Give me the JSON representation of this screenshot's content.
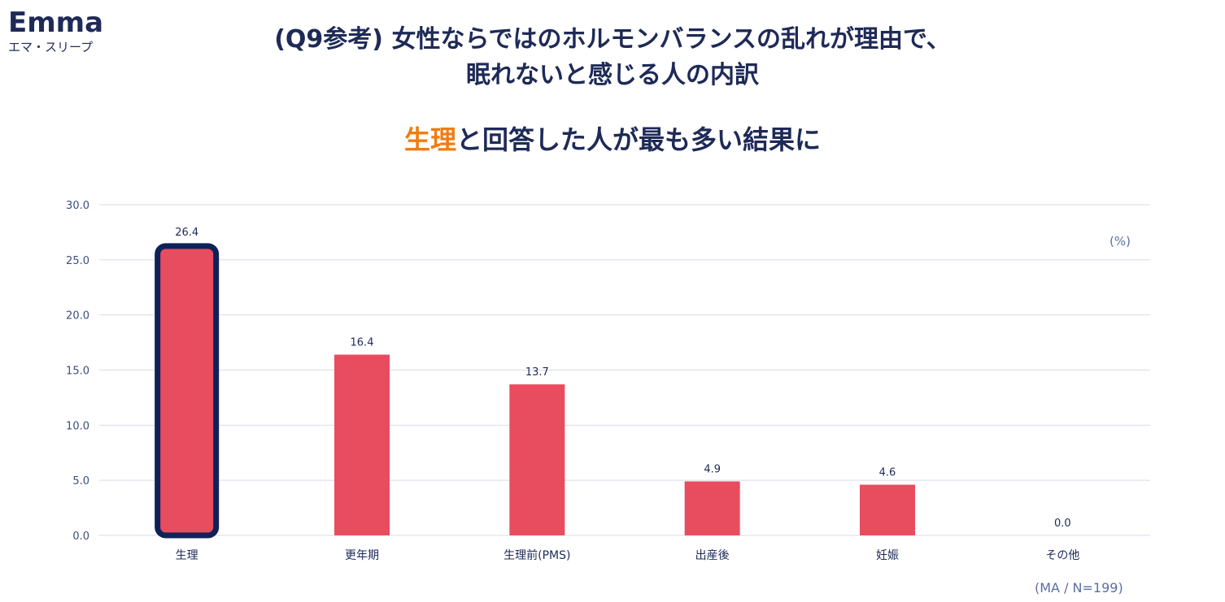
{
  "logo": {
    "name": "Emma",
    "sub": "エマ・スリープ"
  },
  "title": {
    "line1": "(Q9参考) 女性ならではのホルモンバランスの乱れが理由で、",
    "line2": "眠れないと感じる人の内訳"
  },
  "subtitle": {
    "highlight": "生理",
    "rest": "と回答した人が最も多い結果に"
  },
  "unit_label": "(%)",
  "note": "(MA / N=199)",
  "colors": {
    "bar": "#e84c5f",
    "highlight_border": "#0f2257",
    "accent": "#f07c12",
    "text": "#1e2a57"
  },
  "chart_data": {
    "type": "bar",
    "categories": [
      "生理",
      "更年期",
      "生理前(PMS)",
      "出産後",
      "妊娠",
      "その他"
    ],
    "values": [
      26.4,
      16.4,
      13.7,
      4.9,
      4.6,
      0.0
    ],
    "value_labels": [
      "26.4",
      "16.4",
      "13.7",
      "4.9",
      "4.6",
      "0.0"
    ],
    "y_ticks": [
      "0.0",
      "5.0",
      "10.0",
      "15.0",
      "20.0",
      "25.0",
      "30.0"
    ],
    "ylim": [
      0,
      30
    ],
    "grid": true,
    "highlighted_index": 0
  }
}
